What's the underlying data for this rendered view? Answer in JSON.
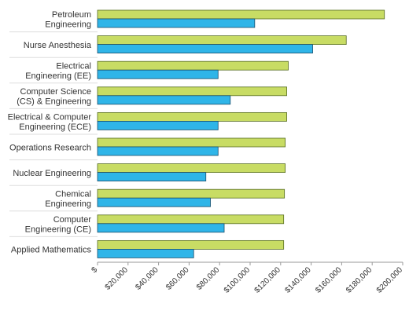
{
  "chart_data": {
    "type": "bar",
    "orientation": "horizontal",
    "categories": [
      [
        "Petroleum",
        "Engineering"
      ],
      [
        "Nurse Anesthesia"
      ],
      [
        "Electrical",
        "Engineering (EE)"
      ],
      [
        "Computer Science",
        "(CS) & Engineering"
      ],
      [
        "Electrical & Computer",
        "Engineering (ECE)"
      ],
      [
        "Operations Research"
      ],
      [
        "Nuclear Engineering"
      ],
      [
        "Chemical",
        "Engineering"
      ],
      [
        "Computer",
        "Engineering (CE)"
      ],
      [
        "Applied Mathematics"
      ]
    ],
    "series": [
      {
        "color": "#c8dc64",
        "stroke": "#556b1e",
        "values": [
          188000,
          163000,
          125000,
          124000,
          124000,
          123000,
          123000,
          122500,
          122000,
          122000
        ]
      },
      {
        "color": "#2fb5e8",
        "stroke": "#1b4e6b",
        "values": [
          103000,
          141000,
          79000,
          87000,
          79000,
          79000,
          71000,
          74000,
          83000,
          63000
        ]
      }
    ],
    "xlim": [
      0,
      200000
    ],
    "x_ticks": [
      "$",
      "$20,000",
      "$40,000",
      "$60,000",
      "$80,000",
      "$100,000",
      "$120,000",
      "$140,000",
      "$160,000",
      "$180,000",
      "$200,000"
    ],
    "title": "",
    "xlabel": "",
    "ylabel": "",
    "grid": false,
    "legend": "none"
  }
}
